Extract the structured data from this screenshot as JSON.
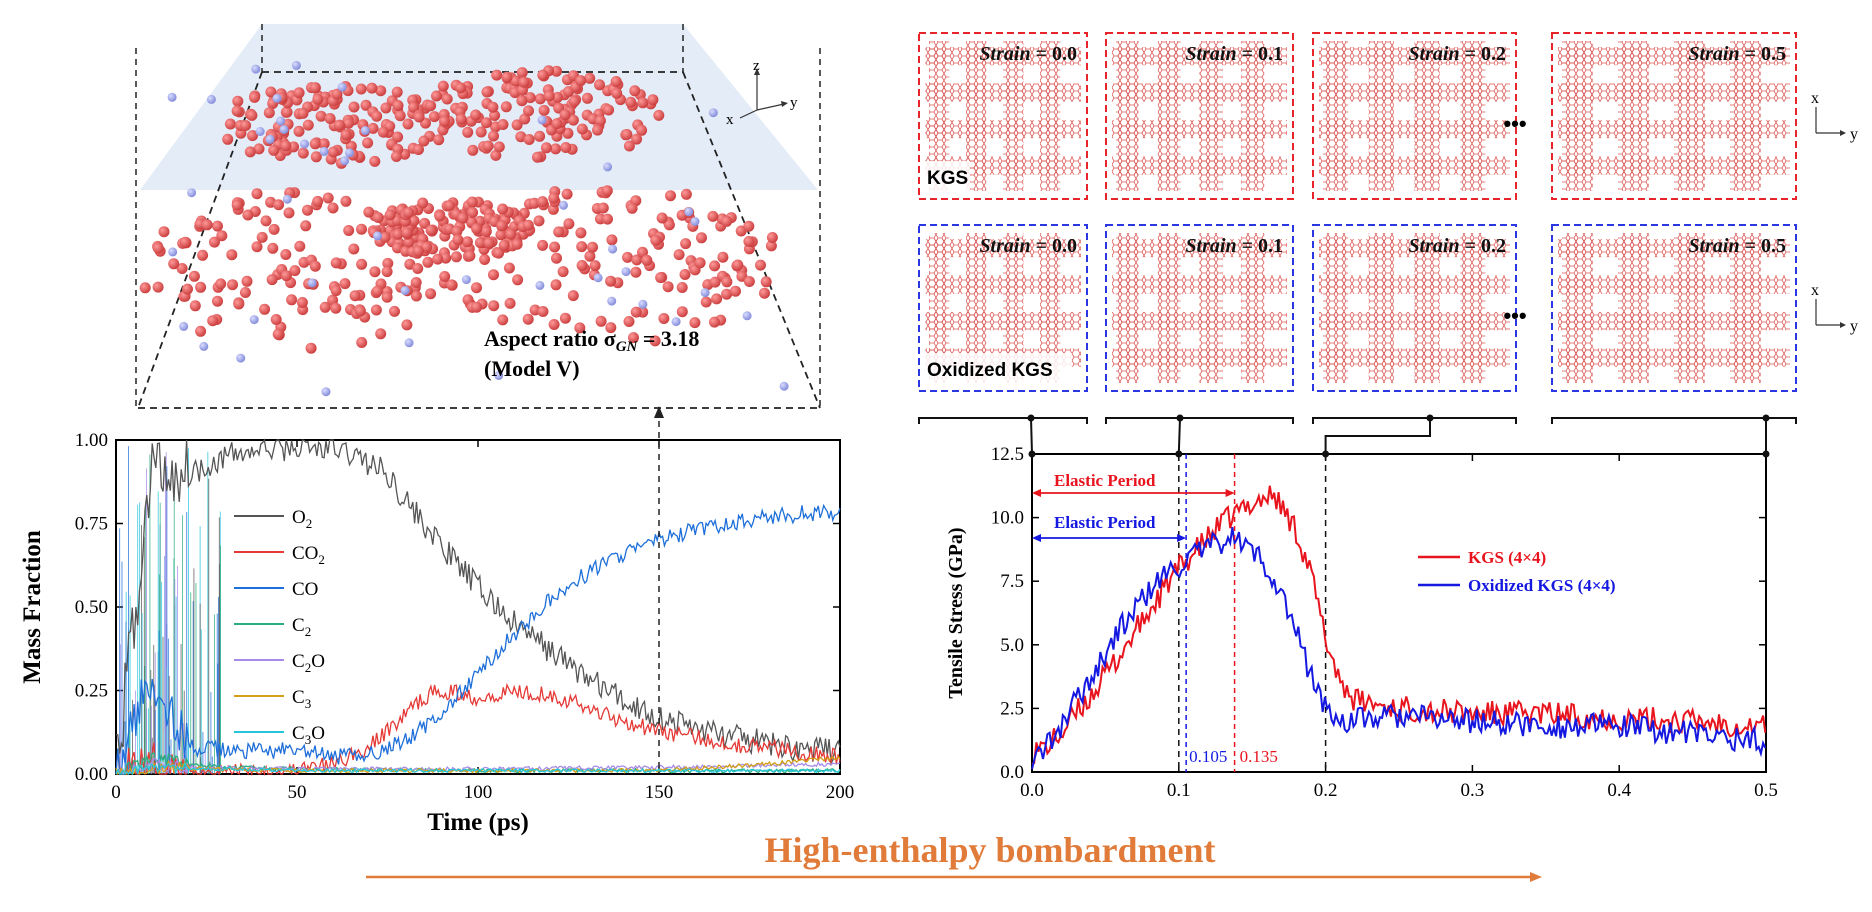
{
  "left_panel": {
    "inset": {
      "label_line1": "Aspect ratio σ",
      "label_sub": "GN",
      "label_value": " = 3.18",
      "label_line2": "(Model V)",
      "axes": {
        "z": "z",
        "y": "y",
        "x": "x"
      }
    }
  },
  "right_panel": {
    "snapshots": {
      "kgs_label": "KGS",
      "oxidized_label": "Oxidized KGS",
      "strain_word": "Strain",
      "strain_values": [
        "= 0.0",
        "= 0.1",
        "= 0.2",
        "= 0.5"
      ],
      "ellipsis": "•••",
      "axes": {
        "x": "x",
        "y": "y"
      }
    }
  },
  "bottom_arrow": {
    "label": "High-enthalpy bombardment",
    "color": "#E07B39"
  },
  "chart_data": [
    {
      "type": "line",
      "id": "mass-fraction",
      "xlabel": "Time (ps)",
      "ylabel": "Mass Fraction",
      "xlim": [
        0,
        200
      ],
      "ylim": [
        0,
        1.0
      ],
      "xticks": [
        0,
        50,
        100,
        150,
        200
      ],
      "yticks": [
        0.0,
        0.25,
        0.5,
        0.75,
        1.0
      ],
      "xtick_labels": [
        "0",
        "50",
        "100",
        "150",
        "200"
      ],
      "ytick_labels": [
        "0.00",
        "0.25",
        "0.50",
        "0.75",
        "1.00"
      ],
      "marker_line_x": 150,
      "series": [
        {
          "name": "O",
          "sub": "2",
          "color": "#555555",
          "x": [
            0,
            10,
            20,
            30,
            40,
            50,
            60,
            65,
            70,
            75,
            80,
            90,
            100,
            110,
            120,
            130,
            140,
            150,
            160,
            170,
            180,
            190,
            200
          ],
          "y": [
            0.0,
            0.92,
            0.9,
            0.95,
            0.97,
            0.98,
            0.97,
            0.96,
            0.93,
            0.9,
            0.82,
            0.68,
            0.56,
            0.45,
            0.37,
            0.29,
            0.22,
            0.17,
            0.14,
            0.11,
            0.09,
            0.075,
            0.065
          ]
        },
        {
          "name": "CO",
          "sub": "2",
          "color": "#E53935",
          "x": [
            0,
            10,
            20,
            30,
            50,
            60,
            70,
            80,
            85,
            90,
            95,
            100,
            110,
            120,
            130,
            140,
            150,
            160,
            170,
            180,
            190,
            200
          ],
          "y": [
            0.0,
            0.02,
            0.01,
            0.01,
            0.01,
            0.03,
            0.08,
            0.18,
            0.23,
            0.25,
            0.24,
            0.23,
            0.25,
            0.24,
            0.2,
            0.16,
            0.13,
            0.11,
            0.09,
            0.08,
            0.065,
            0.05
          ]
        },
        {
          "name": "CO",
          "sub": "",
          "color": "#1E6FD9",
          "x": [
            0,
            10,
            20,
            30,
            40,
            50,
            60,
            70,
            80,
            90,
            100,
            110,
            120,
            130,
            140,
            150,
            160,
            170,
            180,
            190,
            200
          ],
          "y": [
            0.0,
            0.3,
            0.08,
            0.07,
            0.07,
            0.07,
            0.05,
            0.06,
            0.1,
            0.18,
            0.3,
            0.42,
            0.52,
            0.6,
            0.66,
            0.7,
            0.73,
            0.75,
            0.77,
            0.78,
            0.78
          ]
        },
        {
          "name": "C",
          "sub": "2",
          "color": "#2BAE7E",
          "x": [
            0,
            10,
            20,
            30,
            50,
            100,
            150,
            200
          ],
          "y": [
            0.0,
            0.05,
            0.03,
            0.02,
            0.015,
            0.01,
            0.01,
            0.01
          ]
        },
        {
          "name": "C",
          "sub": "2",
          "suffix": "O",
          "color": "#A78BE8",
          "x": [
            0,
            10,
            20,
            50,
            100,
            150,
            200
          ],
          "y": [
            0.0,
            0.03,
            0.02,
            0.015,
            0.015,
            0.02,
            0.03
          ]
        },
        {
          "name": "C",
          "sub": "3",
          "color": "#D4A017",
          "x": [
            0,
            10,
            50,
            100,
            150,
            180,
            200
          ],
          "y": [
            0.0,
            0.02,
            0.01,
            0.01,
            0.01,
            0.03,
            0.05
          ]
        },
        {
          "name": "C",
          "sub": "3",
          "suffix": "O",
          "color": "#26C6DA",
          "x": [
            0,
            10,
            50,
            100,
            150,
            200
          ],
          "y": [
            0.0,
            0.02,
            0.01,
            0.01,
            0.01,
            0.01
          ]
        }
      ]
    },
    {
      "type": "line",
      "id": "tensile-stress",
      "xlabel": "",
      "ylabel": "Tensile Stress (GPa)",
      "xlim": [
        0,
        0.5
      ],
      "ylim": [
        0,
        12.5
      ],
      "xticks": [
        0.0,
        0.1,
        0.2,
        0.3,
        0.4,
        0.5
      ],
      "yticks": [
        0.0,
        2.5,
        5.0,
        7.5,
        10.0,
        12.5
      ],
      "xtick_labels": [
        "0.0",
        "0.1",
        "0.2",
        "0.3",
        "0.4",
        "0.5"
      ],
      "ytick_labels": [
        "0.0",
        "2.5",
        "5.0",
        "7.5",
        "10.0",
        "12.5"
      ],
      "legend_position": "right-middle",
      "annotations": {
        "elastic_red": "Elastic Period",
        "elastic_blue": "Elastic Period",
        "yield_red": "0.135",
        "yield_blue": "0.105",
        "yield_red_x": 0.138,
        "yield_blue_x": 0.105,
        "black_dashed_x": [
          0.1,
          0.2
        ]
      },
      "series": [
        {
          "name": "KGS (4×4)",
          "color": "#E8141E",
          "x": [
            0.0,
            0.01,
            0.02,
            0.03,
            0.04,
            0.05,
            0.06,
            0.07,
            0.08,
            0.09,
            0.1,
            0.11,
            0.12,
            0.13,
            0.14,
            0.15,
            0.16,
            0.165,
            0.17,
            0.18,
            0.19,
            0.2,
            0.21,
            0.22,
            0.25,
            0.3,
            0.35,
            0.4,
            0.45,
            0.5
          ],
          "y": [
            0.8,
            1.0,
            1.5,
            2.3,
            3.0,
            3.8,
            4.6,
            5.5,
            6.3,
            7.2,
            8.0,
            8.6,
            9.2,
            9.8,
            10.2,
            10.6,
            10.8,
            10.9,
            10.4,
            9.5,
            7.8,
            5.2,
            3.6,
            2.8,
            2.5,
            2.3,
            2.3,
            2.1,
            2.0,
            1.8
          ]
        },
        {
          "name": "Oxidized KGS (4×4)",
          "color": "#1418E0",
          "x": [
            0.0,
            0.01,
            0.02,
            0.03,
            0.04,
            0.05,
            0.06,
            0.07,
            0.08,
            0.09,
            0.1,
            0.11,
            0.12,
            0.13,
            0.135,
            0.14,
            0.15,
            0.16,
            0.17,
            0.18,
            0.19,
            0.2,
            0.21,
            0.25,
            0.3,
            0.35,
            0.4,
            0.45,
            0.5
          ],
          "y": [
            0.5,
            1.0,
            1.8,
            2.8,
            3.7,
            4.7,
            5.6,
            6.4,
            7.1,
            7.7,
            8.1,
            8.5,
            8.8,
            9.1,
            9.3,
            9.1,
            8.7,
            8.1,
            7.0,
            5.5,
            3.8,
            2.5,
            2.0,
            2.2,
            2.0,
            1.8,
            1.8,
            1.5,
            1.2
          ]
        }
      ]
    }
  ]
}
